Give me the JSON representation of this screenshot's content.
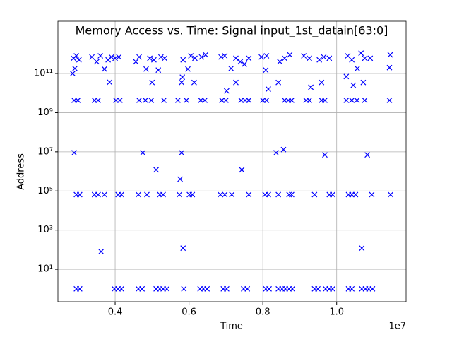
{
  "chart_data": {
    "type": "scatter",
    "title": "Memory Access vs. Time: Signal input_1st_datain[63:0]",
    "x_label": "Time",
    "y_label": "Address",
    "x_offset_text": "1e7",
    "color": "#0000ff",
    "marker": "x",
    "grid": true,
    "y_scale": "log",
    "xlim": [
      2450000,
      11880000
    ],
    "xticks": [
      {
        "value": 4000000,
        "label": "0.4"
      },
      {
        "value": 6000000,
        "label": "0.6"
      },
      {
        "value": 8000000,
        "label": "0.8"
      },
      {
        "value": 10000000,
        "label": "1.0"
      }
    ],
    "ylim": [
      0.22,
      47000000000000.0
    ],
    "yticks": [
      {
        "value": 10,
        "label": "10¹"
      },
      {
        "value": 1000,
        "label": "10³"
      },
      {
        "value": 100000,
        "label": "10⁵"
      },
      {
        "value": 10000000,
        "label": "10⁷"
      },
      {
        "value": 1000000000,
        "label": "10⁹"
      },
      {
        "value": 100000000000,
        "label": "10¹¹"
      }
    ],
    "x": [
      2950000.0,
      3040000.0,
      3980000.0,
      4080000.0,
      4170000.0,
      4630000.0,
      4730000.0,
      5110000.0,
      5210000.0,
      5300000.0,
      5400000.0,
      5860000.0,
      6300000.0,
      6390000.0,
      6490000.0,
      6930000.0,
      7020000.0,
      7480000.0,
      7580000.0,
      8080000.0,
      8170000.0,
      8420000.0,
      8520000.0,
      8610000.0,
      8710000.0,
      8800000.0,
      9400000.0,
      9490000.0,
      9700000.0,
      9800000.0,
      9890000.0,
      10320000.0,
      10410000.0,
      10680000.0,
      10780000.0,
      10870000.0,
      10970000.0,
      2950000.0,
      3040000.0,
      3440000.0,
      3540000.0,
      3710000.0,
      4080000.0,
      4170000.0,
      4630000.0,
      4860000.0,
      5210000.0,
      5300000.0,
      5740000.0,
      6010000.0,
      6090000.0,
      6850000.0,
      6970000.0,
      7160000.0,
      7620000.0,
      8060000.0,
      8150000.0,
      8420000.0,
      8710000.0,
      8780000.0,
      9400000.0,
      9800000.0,
      9890000.0,
      10320000.0,
      10410000.0,
      10510000.0,
      10950000.0,
      11460000.0,
      2890000.0,
      2990000.0,
      3440000.0,
      3540000.0,
      4020000.0,
      4130000.0,
      4650000.0,
      4820000.0,
      4980000.0,
      5320000.0,
      5700000.0,
      5930000.0,
      6320000.0,
      6430000.0,
      6890000.0,
      7000000.0,
      7410000.0,
      7520000.0,
      7620000.0,
      8000000.0,
      8100000.0,
      8590000.0,
      8690000.0,
      8780000.0,
      9170000.0,
      9260000.0,
      9590000.0,
      9680000.0,
      10260000.0,
      10410000.0,
      10550000.0,
      10760000.0,
      11430000.0,
      2870000.0,
      2950000.0,
      3020000.0,
      3370000.0,
      3500000.0,
      3600000.0,
      3810000.0,
      3900000.0,
      4000000.0,
      4100000.0,
      4560000.0,
      4650000.0,
      4940000.0,
      5050000.0,
      5240000.0,
      5340000.0,
      5840000.0,
      6050000.0,
      6160000.0,
      6340000.0,
      6450000.0,
      6870000.0,
      6970000.0,
      7270000.0,
      7390000.0,
      7500000.0,
      7620000.0,
      7960000.0,
      8100000.0,
      8460000.0,
      8590000.0,
      8730000.0,
      9110000.0,
      9260000.0,
      9530000.0,
      9650000.0,
      9800000.0,
      10300000.0,
      10410000.0,
      10660000.0,
      10760000.0,
      10910000.0,
      11450000.0,
      2850000.0,
      2910000.0,
      3710000.0,
      3850000.0,
      5000000.0,
      4840000.0,
      5170000.0,
      5800000.0,
      5820000.0,
      5970000.0,
      6140000.0,
      7020000.0,
      7140000.0,
      7270000.0,
      8080000.0,
      8150000.0,
      8420000.0,
      9300000.0,
      9590000.0,
      10260000.0,
      10450000.0,
      10560000.0,
      10720000.0,
      11430000.0,
      2890000.0,
      4750000.0,
      5800000.0,
      5110000.0,
      5760000.0,
      7430000.0,
      8360000.0,
      8560000.0,
      9680000.0,
      10830000.0,
      3620000.0,
      5840000.0,
      10680000.0
    ],
    "values": [
      1,
      1,
      1,
      1,
      1,
      1,
      1,
      1,
      1,
      1,
      1,
      1,
      1,
      1,
      1,
      1,
      1,
      1,
      1,
      1,
      1,
      1,
      1,
      1,
      1,
      1,
      1,
      1,
      1,
      1,
      1,
      1,
      1,
      1,
      1,
      1,
      1,
      65000,
      65000,
      65000,
      65000,
      65000,
      65000,
      65000,
      65000,
      65000,
      65000,
      65000,
      65000,
      65000,
      65000,
      65000,
      65000,
      65000,
      65000,
      65000,
      65000,
      65000,
      65000,
      65000,
      65000,
      65000,
      65000,
      65000,
      65000,
      65000,
      65000,
      65000,
      4300000000.0,
      4300000000.0,
      4300000000.0,
      4300000000.0,
      4300000000.0,
      4300000000.0,
      4300000000.0,
      4300000000.0,
      4300000000.0,
      4300000000.0,
      4300000000.0,
      4300000000.0,
      4300000000.0,
      4300000000.0,
      4300000000.0,
      4300000000.0,
      4300000000.0,
      4300000000.0,
      4300000000.0,
      4300000000.0,
      4300000000.0,
      4300000000.0,
      4300000000.0,
      4300000000.0,
      4300000000.0,
      4300000000.0,
      4300000000.0,
      4300000000.0,
      4300000000.0,
      4300000000.0,
      4300000000.0,
      4300000000.0,
      4300000000.0,
      600000000000.0,
      800000000000.0,
      500000000000.0,
      700000000000.0,
      400000000000.0,
      800000000000.0,
      500000000000.0,
      700000000000.0,
      600000000000.0,
      700000000000.0,
      400000000000.0,
      700000000000.0,
      600000000000.0,
      500000000000.0,
      700000000000.0,
      600000000000.0,
      500000000000.0,
      800000000000.0,
      600000000000.0,
      700000000000.0,
      900000000000.0,
      700000000000.0,
      800000000000.0,
      600000000000.0,
      400000000000.0,
      300000000000.0,
      600000000000.0,
      700000000000.0,
      800000000000.0,
      400000000000.0,
      600000000000.0,
      900000000000.0,
      800000000000.0,
      600000000000.0,
      500000000000.0,
      700000000000.0,
      600000000000.0,
      800000000000.0,
      500000000000.0,
      1100000000000.0,
      600000000000.0,
      600000000000.0,
      900000000000.0,
      100000000000.0,
      180000000000.0,
      170000000000.0,
      36000000000.0,
      35000000000.0,
      170000000000.0,
      150000000000.0,
      35000000000.0,
      65000000000.0,
      170000000000.0,
      35000000000.0,
      13000000000.0,
      180000000000.0,
      35000000000.0,
      150000000000.0,
      16000000000.0,
      35000000000.0,
      20000000000.0,
      35000000000.0,
      70000000000.0,
      25000000000.0,
      180000000000.0,
      35000000000.0,
      200000000000.0,
      9000000.0,
      9000000.0,
      9000000.0,
      1200000.0,
      400000.0,
      1200000.0,
      9000000.0,
      13000000.0,
      7000000.0,
      7000000.0,
      80,
      120,
      120
    ]
  }
}
